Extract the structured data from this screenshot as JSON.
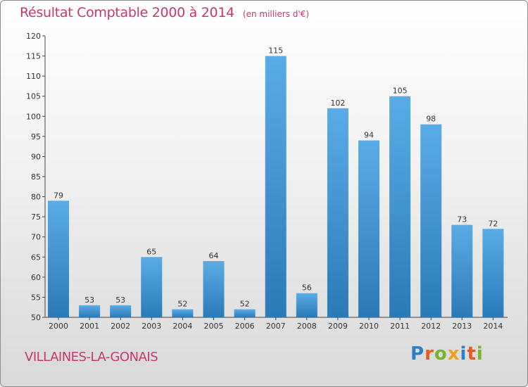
{
  "header": {
    "title": "Résultat Comptable 2000 à 2014",
    "subtitle": "(en milliers d'€)"
  },
  "footer": {
    "commune": "VILLAINES-LA-GONAIS",
    "logo": "Proxiti"
  },
  "colors": {
    "title": "#c8366e",
    "bar_top": "#5aace6",
    "bar_bottom": "#2a7ab8"
  },
  "chart_data": {
    "type": "bar",
    "title": "Résultat Comptable 2000 à 2014",
    "subtitle": "(en milliers d'€)",
    "categories": [
      "2000",
      "2001",
      "2002",
      "2003",
      "2004",
      "2005",
      "2006",
      "2007",
      "2008",
      "2009",
      "2010",
      "2011",
      "2012",
      "2013",
      "2014"
    ],
    "values": [
      79,
      53,
      53,
      65,
      52,
      64,
      52,
      115,
      56,
      102,
      94,
      105,
      98,
      73,
      72
    ],
    "ylim": [
      50,
      120
    ],
    "yticks": [
      50,
      55,
      60,
      65,
      70,
      75,
      80,
      85,
      90,
      95,
      100,
      105,
      110,
      115,
      120
    ],
    "grid": false,
    "data_labels": true
  }
}
